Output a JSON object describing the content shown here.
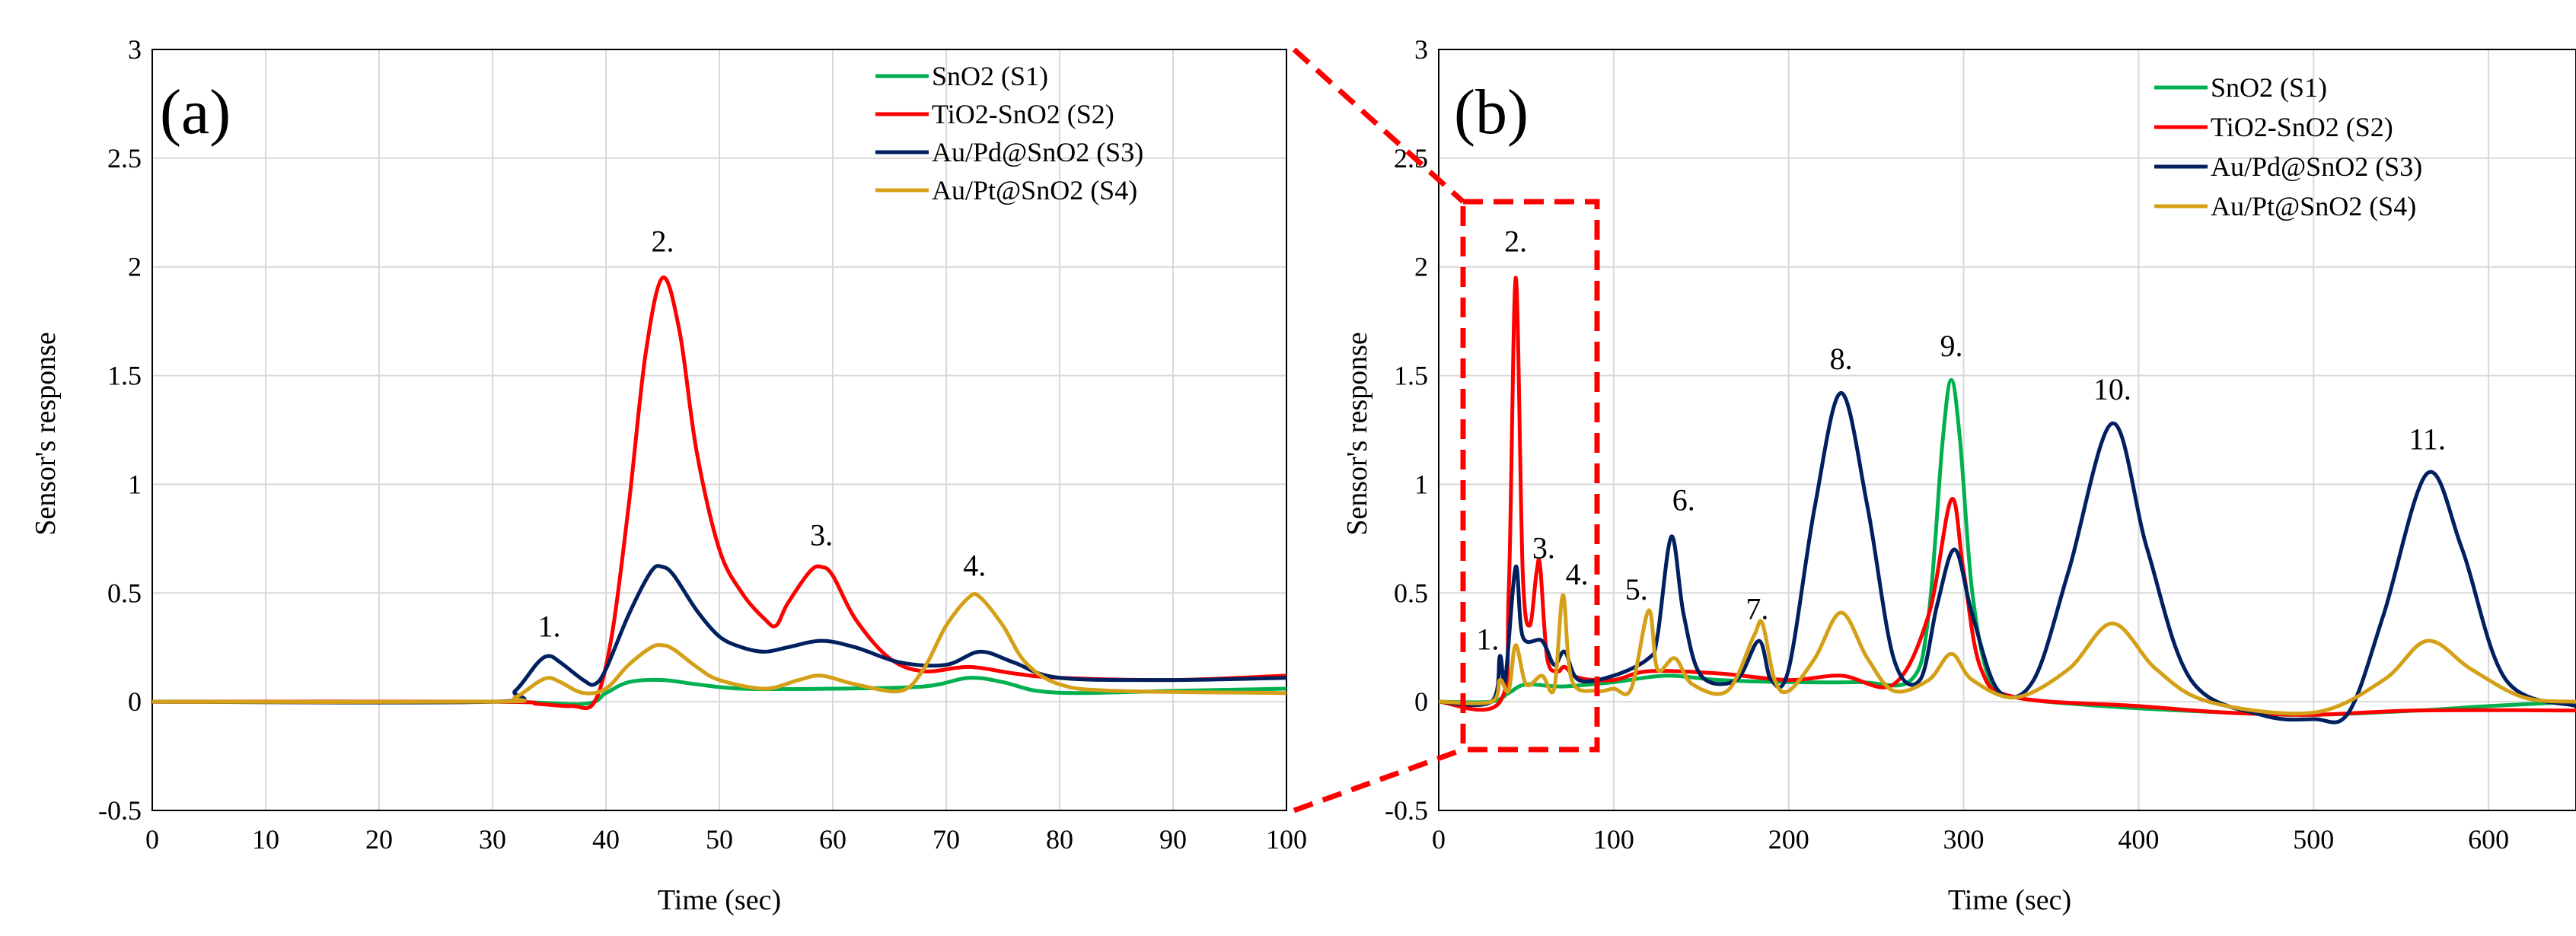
{
  "chart_data": [
    {
      "type": "line",
      "panel_label": "(a)",
      "xlabel": "Time (sec)",
      "ylabel": "Sensor's response",
      "xlim": [
        0,
        100
      ],
      "ylim": [
        -0.5,
        3
      ],
      "xticks": [
        0,
        10,
        20,
        30,
        40,
        50,
        60,
        70,
        80,
        90,
        100
      ],
      "yticks": [
        -0.5,
        0,
        0.5,
        1,
        1.5,
        2,
        2.5,
        3
      ],
      "grid": true,
      "legend_position": "top-right",
      "series": [
        {
          "name": "SnO2 (S1)",
          "color": "#00b050",
          "points": [
            [
              0,
              0
            ],
            [
              30,
              0
            ],
            [
              38,
              -0.01
            ],
            [
              40,
              0.04
            ],
            [
              42,
              0.09
            ],
            [
              45,
              0.1
            ],
            [
              48,
              0.08
            ],
            [
              52,
              0.06
            ],
            [
              60,
              0.06
            ],
            [
              68,
              0.07
            ],
            [
              72,
              0.11
            ],
            [
              75,
              0.09
            ],
            [
              78,
              0.05
            ],
            [
              82,
              0.04
            ],
            [
              90,
              0.05
            ],
            [
              100,
              0.06
            ]
          ]
        },
        {
          "name": "TiO2-SnO2 (S2)",
          "color": "#ff0000",
          "points": [
            [
              0,
              0
            ],
            [
              30,
              0
            ],
            [
              34,
              -0.01
            ],
            [
              37,
              -0.02
            ],
            [
              39,
              0
            ],
            [
              40.5,
              0.3
            ],
            [
              42,
              0.9
            ],
            [
              43.5,
              1.6
            ],
            [
              45,
              1.95
            ],
            [
              46.5,
              1.7
            ],
            [
              48,
              1.15
            ],
            [
              50,
              0.7
            ],
            [
              52,
              0.5
            ],
            [
              54,
              0.38
            ],
            [
              55,
              0.35
            ],
            [
              56,
              0.45
            ],
            [
              58,
              0.6
            ],
            [
              59,
              0.62
            ],
            [
              60,
              0.58
            ],
            [
              62,
              0.38
            ],
            [
              65,
              0.2
            ],
            [
              68,
              0.14
            ],
            [
              72,
              0.16
            ],
            [
              76,
              0.13
            ],
            [
              80,
              0.11
            ],
            [
              90,
              0.1
            ],
            [
              100,
              0.12
            ]
          ]
        },
        {
          "name": "Au/Pd@SnO2 (S3)",
          "color": "#002060",
          "points": [
            [
              0,
              0
            ],
            [
              30,
              0
            ],
            [
              32,
              0.05
            ],
            [
              34,
              0.18
            ],
            [
              35,
              0.21
            ],
            [
              36,
              0.18
            ],
            [
              38,
              0.1
            ],
            [
              39,
              0.08
            ],
            [
              40,
              0.15
            ],
            [
              42,
              0.4
            ],
            [
              44,
              0.6
            ],
            [
              45,
              0.62
            ],
            [
              46,
              0.58
            ],
            [
              48,
              0.42
            ],
            [
              50,
              0.3
            ],
            [
              52,
              0.25
            ],
            [
              54,
              0.23
            ],
            [
              56,
              0.25
            ],
            [
              59,
              0.28
            ],
            [
              62,
              0.25
            ],
            [
              66,
              0.18
            ],
            [
              70,
              0.17
            ],
            [
              73,
              0.23
            ],
            [
              76,
              0.18
            ],
            [
              80,
              0.11
            ],
            [
              90,
              0.1
            ],
            [
              100,
              0.11
            ]
          ]
        },
        {
          "name": "Au/Pt@SnO2 (S4)",
          "color": "#d4a017",
          "points": [
            [
              0,
              0
            ],
            [
              30,
              0
            ],
            [
              32,
              0.02
            ],
            [
              34,
              0.09
            ],
            [
              35,
              0.11
            ],
            [
              36,
              0.09
            ],
            [
              38,
              0.04
            ],
            [
              40,
              0.06
            ],
            [
              42,
              0.17
            ],
            [
              44,
              0.25
            ],
            [
              45,
              0.26
            ],
            [
              46,
              0.24
            ],
            [
              48,
              0.16
            ],
            [
              50,
              0.1
            ],
            [
              54,
              0.06
            ],
            [
              57,
              0.1
            ],
            [
              59,
              0.12
            ],
            [
              62,
              0.08
            ],
            [
              66,
              0.05
            ],
            [
              68,
              0.15
            ],
            [
              70,
              0.35
            ],
            [
              72,
              0.48
            ],
            [
              73,
              0.48
            ],
            [
              75,
              0.35
            ],
            [
              77,
              0.18
            ],
            [
              80,
              0.08
            ],
            [
              85,
              0.05
            ],
            [
              100,
              0.04
            ]
          ]
        }
      ],
      "annotations": [
        {
          "text": "1.",
          "x": 35,
          "y": 0.3
        },
        {
          "text": "2.",
          "x": 45,
          "y": 2.07
        },
        {
          "text": "3.",
          "x": 59,
          "y": 0.72
        },
        {
          "text": "4.",
          "x": 72.5,
          "y": 0.58
        }
      ]
    },
    {
      "type": "line",
      "panel_label": "(b)",
      "xlabel": "Time (sec)",
      "ylabel": "Sensor's response",
      "xlim": [
        0,
        650
      ],
      "ylim": [
        -0.5,
        3
      ],
      "xticks": [
        0,
        100,
        200,
        300,
        400,
        500,
        600
      ],
      "yticks": [
        -0.5,
        0,
        0.5,
        1,
        1.5,
        2,
        2.5,
        3
      ],
      "grid": true,
      "legend_position": "top-right",
      "series": [
        {
          "name": "SnO2 (S1)",
          "color": "#00b050",
          "points": [
            [
              0,
              0
            ],
            [
              30,
              0
            ],
            [
              40,
              0.04
            ],
            [
              50,
              0.08
            ],
            [
              70,
              0.07
            ],
            [
              100,
              0.09
            ],
            [
              130,
              0.12
            ],
            [
              160,
              0.1
            ],
            [
              200,
              0.09
            ],
            [
              240,
              0.09
            ],
            [
              270,
              0.1
            ],
            [
              280,
              0.4
            ],
            [
              288,
              1.2
            ],
            [
              293,
              1.48
            ],
            [
              298,
              1.2
            ],
            [
              305,
              0.5
            ],
            [
              315,
              0.1
            ],
            [
              330,
              0.02
            ],
            [
              380,
              -0.02
            ],
            [
              450,
              -0.05
            ],
            [
              500,
              -0.06
            ],
            [
              560,
              -0.04
            ],
            [
              600,
              -0.02
            ],
            [
              650,
              0
            ]
          ]
        },
        {
          "name": "TiO2-SnO2 (S2)",
          "color": "#ff0000",
          "points": [
            [
              0,
              0
            ],
            [
              35,
              0
            ],
            [
              40,
              0.5
            ],
            [
              44,
              1.95
            ],
            [
              48,
              0.6
            ],
            [
              52,
              0.35
            ],
            [
              56,
              0.6
            ],
            [
              58,
              0.62
            ],
            [
              62,
              0.2
            ],
            [
              68,
              0.14
            ],
            [
              72,
              0.16
            ],
            [
              80,
              0.11
            ],
            [
              100,
              0.1
            ],
            [
              120,
              0.14
            ],
            [
              160,
              0.13
            ],
            [
              200,
              0.1
            ],
            [
              230,
              0.12
            ],
            [
              260,
              0.08
            ],
            [
              280,
              0.4
            ],
            [
              293,
              0.93
            ],
            [
              300,
              0.6
            ],
            [
              310,
              0.15
            ],
            [
              330,
              0.02
            ],
            [
              400,
              -0.02
            ],
            [
              450,
              -0.05
            ],
            [
              500,
              -0.06
            ],
            [
              560,
              -0.04
            ],
            [
              650,
              -0.04
            ]
          ]
        },
        {
          "name": "Au/Pd@SnO2 (S3)",
          "color": "#002060",
          "points": [
            [
              0,
              0
            ],
            [
              30,
              0
            ],
            [
              35,
              0.21
            ],
            [
              38,
              0.1
            ],
            [
              44,
              0.62
            ],
            [
              48,
              0.3
            ],
            [
              59,
              0.28
            ],
            [
              66,
              0.17
            ],
            [
              72,
              0.23
            ],
            [
              80,
              0.1
            ],
            [
              100,
              0.12
            ],
            [
              120,
              0.2
            ],
            [
              125,
              0.3
            ],
            [
              133,
              0.76
            ],
            [
              140,
              0.4
            ],
            [
              150,
              0.12
            ],
            [
              170,
              0.1
            ],
            [
              183,
              0.28
            ],
            [
              190,
              0.1
            ],
            [
              200,
              0.15
            ],
            [
              215,
              0.9
            ],
            [
              230,
              1.42
            ],
            [
              245,
              0.9
            ],
            [
              260,
              0.2
            ],
            [
              275,
              0.1
            ],
            [
              285,
              0.45
            ],
            [
              295,
              0.7
            ],
            [
              305,
              0.4
            ],
            [
              320,
              0.05
            ],
            [
              340,
              0.1
            ],
            [
              360,
              0.6
            ],
            [
              385,
              1.28
            ],
            [
              405,
              0.7
            ],
            [
              430,
              0.1
            ],
            [
              470,
              -0.06
            ],
            [
              500,
              -0.08
            ],
            [
              520,
              -0.05
            ],
            [
              540,
              0.4
            ],
            [
              565,
              1.05
            ],
            [
              585,
              0.7
            ],
            [
              610,
              0.1
            ],
            [
              650,
              -0.02
            ]
          ]
        },
        {
          "name": "Au/Pt@SnO2 (S4)",
          "color": "#d4a017",
          "points": [
            [
              0,
              0
            ],
            [
              30,
              0
            ],
            [
              35,
              0.1
            ],
            [
              40,
              0.05
            ],
            [
              44,
              0.26
            ],
            [
              50,
              0.08
            ],
            [
              59,
              0.12
            ],
            [
              66,
              0.06
            ],
            [
              71,
              0.49
            ],
            [
              76,
              0.1
            ],
            [
              90,
              0.05
            ],
            [
              100,
              0.06
            ],
            [
              110,
              0.06
            ],
            [
              120,
              0.42
            ],
            [
              125,
              0.15
            ],
            [
              135,
              0.2
            ],
            [
              145,
              0.08
            ],
            [
              165,
              0.05
            ],
            [
              180,
              0.3
            ],
            [
              185,
              0.36
            ],
            [
              192,
              0.1
            ],
            [
              200,
              0.05
            ],
            [
              215,
              0.2
            ],
            [
              230,
              0.41
            ],
            [
              245,
              0.2
            ],
            [
              260,
              0.05
            ],
            [
              280,
              0.1
            ],
            [
              293,
              0.22
            ],
            [
              305,
              0.1
            ],
            [
              330,
              0.02
            ],
            [
              360,
              0.15
            ],
            [
              385,
              0.36
            ],
            [
              410,
              0.15
            ],
            [
              440,
              0
            ],
            [
              500,
              -0.05
            ],
            [
              540,
              0.1
            ],
            [
              565,
              0.28
            ],
            [
              590,
              0.15
            ],
            [
              620,
              0.02
            ],
            [
              650,
              0
            ]
          ]
        }
      ],
      "annotations": [
        {
          "text": "1.",
          "x": 28,
          "y": 0.24
        },
        {
          "text": "2.",
          "x": 44,
          "y": 2.07
        },
        {
          "text": "3.",
          "x": 60,
          "y": 0.66
        },
        {
          "text": "4.",
          "x": 79,
          "y": 0.54
        },
        {
          "text": "5.",
          "x": 113,
          "y": 0.47
        },
        {
          "text": "6.",
          "x": 140,
          "y": 0.88
        },
        {
          "text": "7.",
          "x": 182,
          "y": 0.38
        },
        {
          "text": "8.",
          "x": 230,
          "y": 1.53
        },
        {
          "text": "9.",
          "x": 293,
          "y": 1.59
        },
        {
          "text": "10.",
          "x": 385,
          "y": 1.39
        },
        {
          "text": "11.",
          "x": 565,
          "y": 1.16
        }
      ]
    }
  ]
}
